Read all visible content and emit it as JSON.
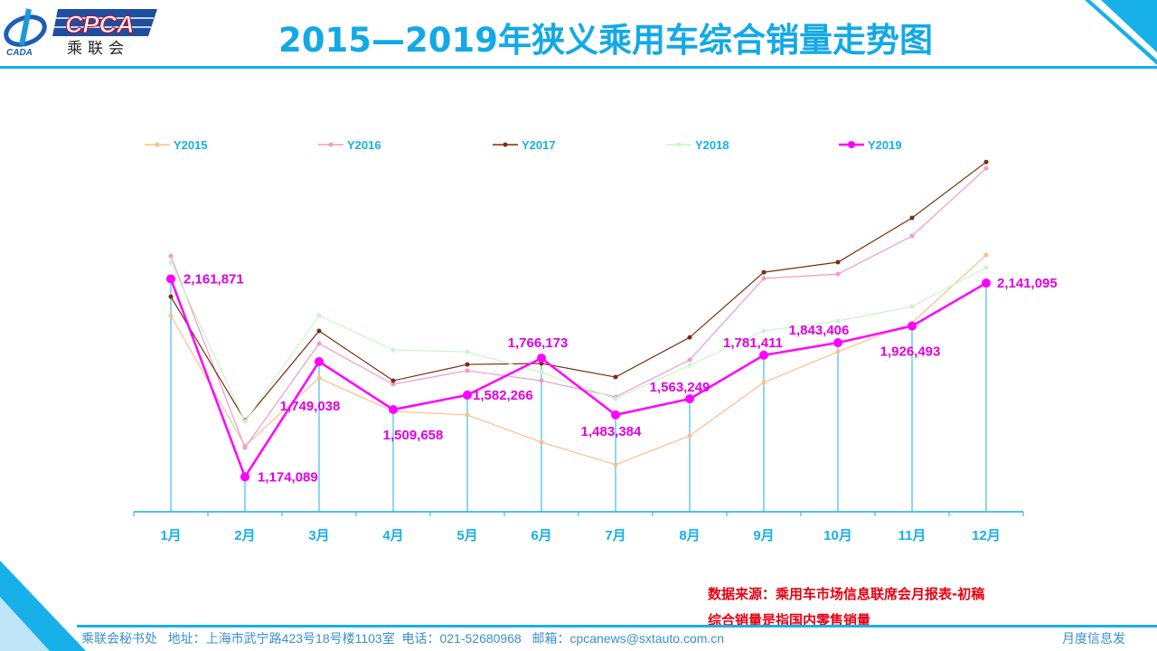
{
  "header": {
    "title": "2015—2019年狭义乘用车综合销量走势图",
    "logo_text": "CPCA",
    "logo_subtext": "乘联会",
    "logo_emblem_text": "CADA"
  },
  "chart_data": {
    "type": "line",
    "title": "2015—2019年狭义乘用车综合销量走势图",
    "categories": [
      "1月",
      "2月",
      "3月",
      "4月",
      "5月",
      "6月",
      "7月",
      "8月",
      "9月",
      "10月",
      "11月",
      "12月"
    ],
    "ylim": [
      1000000,
      2800000
    ],
    "y_axis_visible": false,
    "grid": false,
    "legend_position": "top",
    "drop_lines_series": "Y2019",
    "series": [
      {
        "name": "Y2015",
        "color": "#f8c08c",
        "values": [
          1979000,
          1329000,
          1667000,
          1501000,
          1483000,
          1347000,
          1235000,
          1379000,
          1645000,
          1798000,
          1943000,
          2281000
        ]
      },
      {
        "name": "Y2016",
        "color": "#f09ac8",
        "values": [
          2276000,
          1320000,
          1839000,
          1636000,
          1704000,
          1654000,
          1573000,
          1758000,
          2164000,
          2186000,
          2376000,
          2714000
        ]
      },
      {
        "name": "Y2017",
        "color": "#7a2e0a",
        "values": [
          2073000,
          1456000,
          1902000,
          1654000,
          1735000,
          1740000,
          1672000,
          1870000,
          2195000,
          2245000,
          2466000,
          2745000
        ]
      },
      {
        "name": "Y2018",
        "color": "#c8f5c8",
        "values": [
          2245000,
          1451000,
          1979000,
          1807000,
          1798000,
          1695000,
          1564000,
          1731000,
          1902000,
          1952000,
          2024000,
          2218000
        ]
      },
      {
        "name": "Y2019",
        "color": "#ff00ff",
        "values": [
          2161871,
          1174089,
          1749038,
          1509658,
          1582266,
          1766173,
          1483384,
          1563249,
          1781411,
          1843406,
          1926493,
          2141095
        ],
        "data_labels": [
          "2,161,871",
          "1,174,089",
          "1,749,038",
          "1,509,658",
          "1,582,266",
          "1,766,173",
          "1,483,384",
          "1,563,249",
          "1,781,411",
          "1,843,406",
          "1,926,493",
          "2,141,095"
        ]
      }
    ],
    "axis_color": "#17b0e8",
    "label_color": "#e000e0"
  },
  "notes": {
    "source": "数据来源：乘用车市场信息联席会月报表-初稿",
    "definition": "综合销量是指国内零售销量"
  },
  "footer": {
    "contact": "乘联会秘书处   地址：上海市武宁路423号18号楼1103室  电话：021-52680968   邮箱：cpcanews@sxtauto.com.cn",
    "right": "月度信息发"
  }
}
